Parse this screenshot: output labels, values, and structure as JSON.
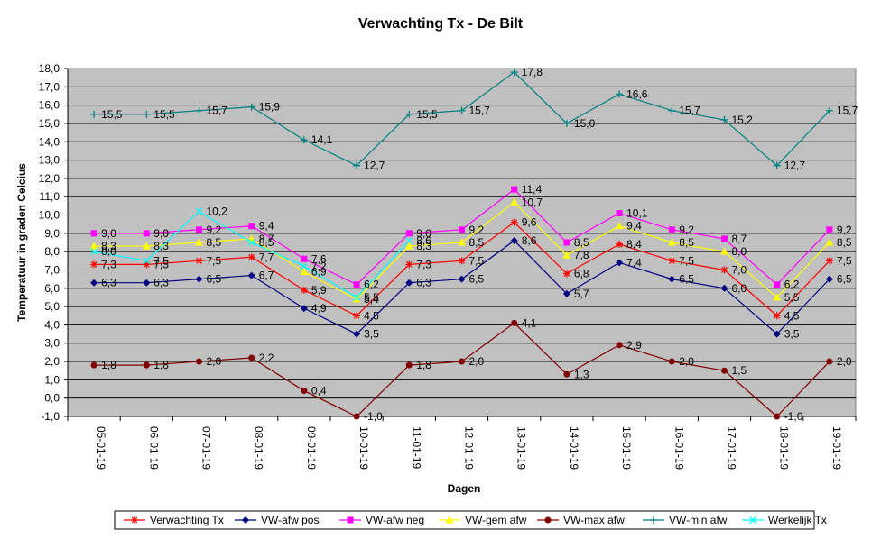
{
  "chart_data": {
    "type": "line",
    "title": "Verwachting Tx - De Bilt",
    "xlabel": "Dagen",
    "ylabel": "Temperatuur in graden Celcius",
    "ylim": [
      -1.0,
      18.0
    ],
    "ytick_step": 1.0,
    "ytick_labels": [
      "-1,0",
      "0,0",
      "1,0",
      "2,0",
      "3,0",
      "4,0",
      "5,0",
      "6,0",
      "7,0",
      "8,0",
      "9,0",
      "10,0",
      "11,0",
      "12,0",
      "13,0",
      "14,0",
      "15,0",
      "16,0",
      "17,0",
      "18,0"
    ],
    "categories": [
      "05-01-19",
      "06-01-19",
      "07-01-19",
      "08-01-19",
      "09-01-19",
      "10-01-19",
      "11-01-19",
      "12-01-19",
      "13-01-19",
      "14-01-19",
      "15-01-19",
      "16-01-19",
      "17-01-19",
      "18-01-19",
      "19-01-19"
    ],
    "grid": true,
    "plot_background": "#c0c0c0",
    "legend_position": "bottom",
    "series": [
      {
        "name": "Verwachting Tx",
        "color": "#ff0000",
        "marker": "star",
        "values": [
          7.3,
          7.3,
          7.5,
          7.7,
          5.9,
          4.5,
          7.3,
          7.5,
          9.6,
          6.8,
          8.4,
          7.5,
          7.0,
          4.5,
          7.5
        ],
        "labels": [
          "7,3",
          "7,3",
          "7,5",
          "7,7",
          "5,9",
          "4,5",
          "7,3",
          "7,5",
          "9,6",
          "6,8",
          "8,4",
          "7,5",
          "7,0",
          "4,5",
          "7,5"
        ]
      },
      {
        "name": "VW-afw pos",
        "color": "#000080",
        "marker": "diamond",
        "values": [
          6.3,
          6.3,
          6.5,
          6.7,
          4.9,
          3.5,
          6.3,
          6.5,
          8.6,
          5.7,
          7.4,
          6.5,
          6.0,
          3.5,
          6.5
        ],
        "labels": [
          "6,3",
          "6,3",
          "6,5",
          "6,7",
          "4,9",
          "3,5",
          "6,3",
          "6,5",
          "8,6",
          "5,7",
          "7,4",
          "6,5",
          "6,0",
          "3,5",
          "6,5"
        ]
      },
      {
        "name": "VW-afw neg",
        "color": "#ff00ff",
        "marker": "square",
        "values": [
          9.0,
          9.0,
          9.2,
          9.4,
          7.6,
          6.2,
          9.0,
          9.2,
          11.4,
          8.5,
          10.1,
          9.2,
          8.7,
          6.2,
          9.2
        ],
        "labels": [
          "9,0",
          "9,0",
          "9,2",
          "9,4",
          "7,6",
          "6,2",
          "9,0",
          "9,2",
          "11,4",
          "8,5",
          "10,1",
          "9,2",
          "8,7",
          "6,2",
          "9,2"
        ]
      },
      {
        "name": "VW-gem afw",
        "color": "#ffff00",
        "marker": "triangle",
        "values": [
          8.3,
          8.3,
          8.5,
          8.7,
          6.9,
          5.4,
          8.3,
          8.5,
          10.7,
          7.8,
          9.4,
          8.5,
          8.0,
          5.5,
          8.5
        ],
        "labels": [
          "8,3",
          "8,3",
          "8,5",
          "8,7",
          "6,9",
          "5,4",
          "8,3",
          "8,5",
          "10,7",
          "7,8",
          "9,4",
          "8,5",
          "8,0",
          "5,5",
          "8,5"
        ]
      },
      {
        "name": "VW-max afw",
        "color": "#800000",
        "marker": "circle",
        "values": [
          1.8,
          1.8,
          2.0,
          2.2,
          0.4,
          -1.0,
          1.8,
          2.0,
          4.1,
          1.3,
          2.9,
          2.0,
          1.5,
          -1.0,
          2.0
        ],
        "labels": [
          "1,8",
          "1,8",
          "2,0",
          "2,2",
          "0,4",
          "-1,0",
          "1,8",
          "2,0",
          "4,1",
          "1,3",
          "2,9",
          "2,0",
          "1,5",
          "-1,0",
          "2,0"
        ]
      },
      {
        "name": "VW-min afw",
        "color": "#008080",
        "marker": "plus",
        "values": [
          15.5,
          15.5,
          15.7,
          15.9,
          14.1,
          12.7,
          15.5,
          15.7,
          17.8,
          15.0,
          16.6,
          15.7,
          15.2,
          12.7,
          15.7
        ],
        "labels": [
          "15,5",
          "15,5",
          "15,7",
          "15,9",
          "14,1",
          "12,7",
          "15,5",
          "15,7",
          "17,8",
          "15,0",
          "16,6",
          "15,7",
          "15,2",
          "12,7",
          "15,7"
        ]
      },
      {
        "name": "Werkelijk Tx",
        "color": "#00ffff",
        "marker": "x",
        "values": [
          8.0,
          7.5,
          10.2,
          8.5,
          7.2,
          5.5,
          8.6,
          null,
          null,
          null,
          null,
          null,
          null,
          null,
          null
        ],
        "labels": [
          "8,0",
          "7,5",
          "10,2",
          "8,5",
          "7,2",
          "5,5",
          "8,6",
          null,
          null,
          null,
          null,
          null,
          null,
          null,
          null
        ]
      }
    ]
  }
}
